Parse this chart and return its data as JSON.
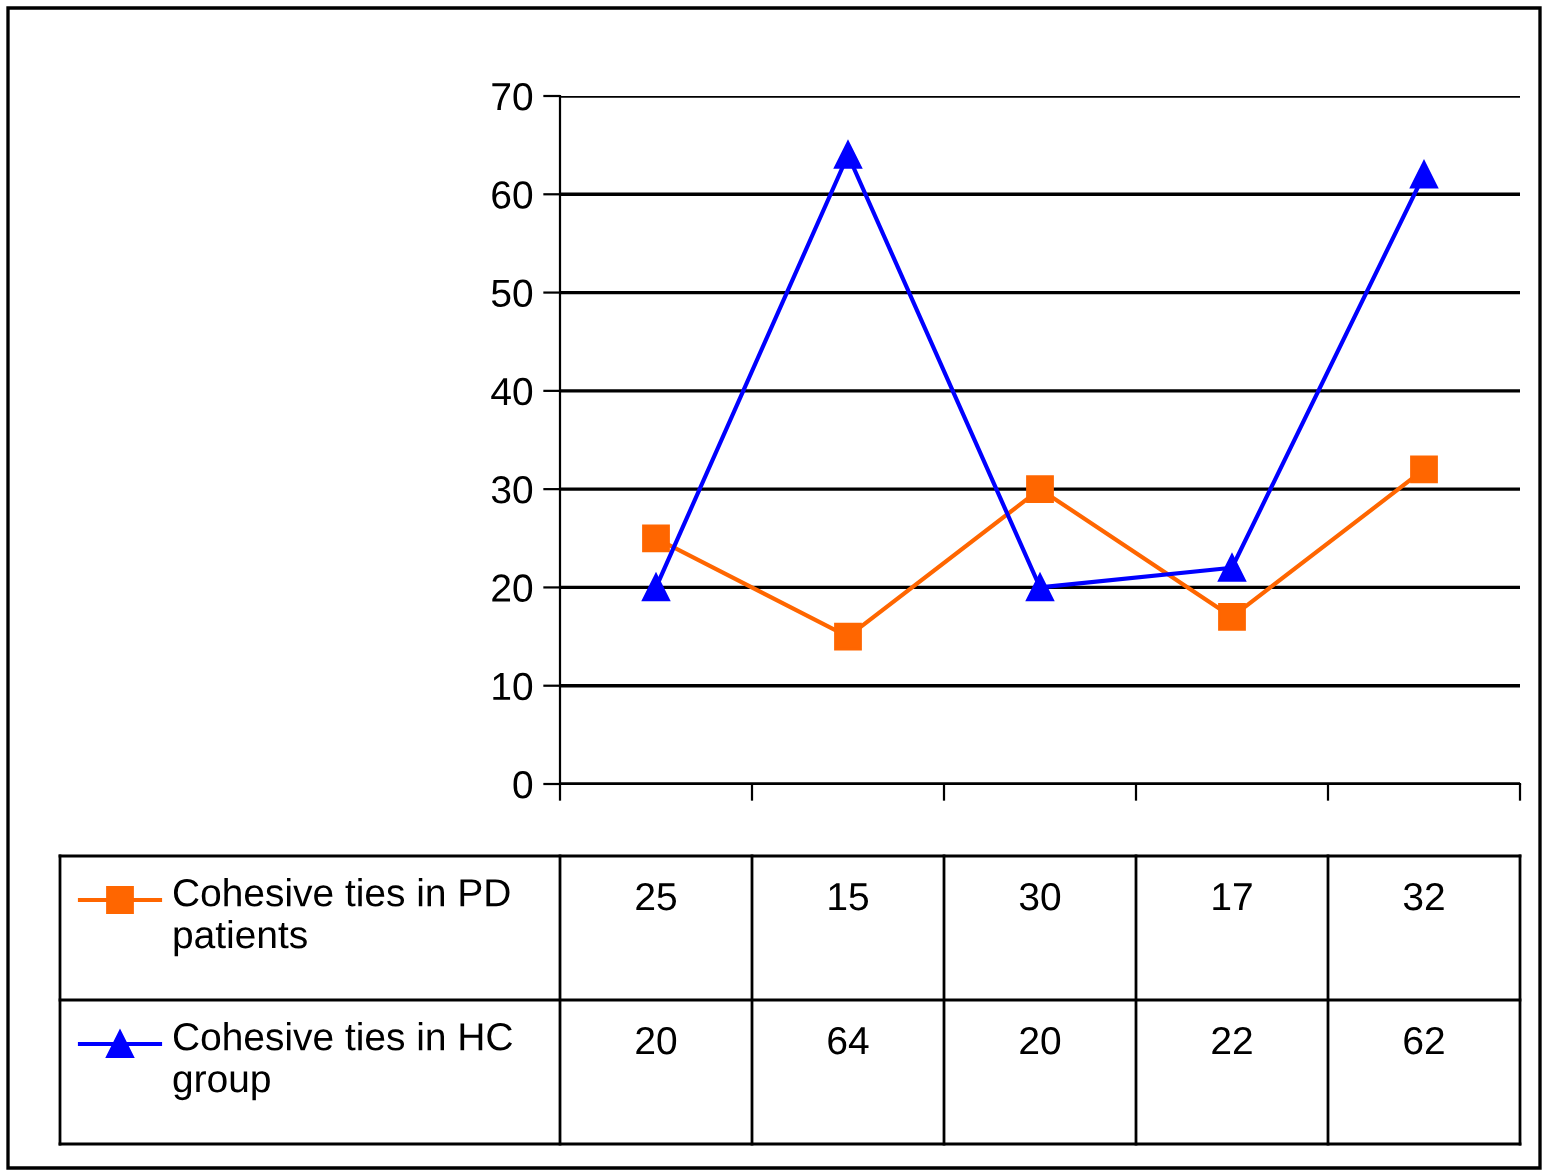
{
  "chart_data": {
    "type": "line",
    "categories": [
      null,
      null,
      null,
      null,
      null
    ],
    "series": [
      {
        "name": "Cohesive ties in PD patients",
        "color": "#ff6600",
        "marker": "square",
        "values": [
          25,
          15,
          30,
          17,
          32
        ]
      },
      {
        "name": "Cohesive ties in HC group",
        "color": "#0000ff",
        "marker": "triangle",
        "values": [
          20,
          64,
          20,
          22,
          62
        ]
      }
    ],
    "ylim": [
      0,
      70
    ],
    "yticks": [
      0,
      10,
      20,
      30,
      40,
      50,
      60,
      70
    ],
    "grid": "y",
    "legend": "left",
    "data_labels": true,
    "line_style": "solid"
  }
}
